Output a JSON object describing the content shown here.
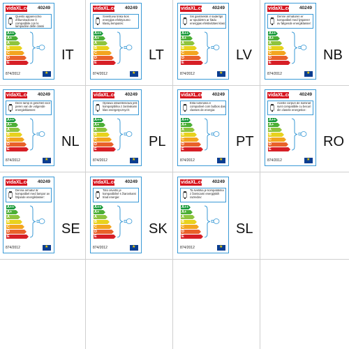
{
  "labels": [
    {
      "lang": "IT",
      "code": "40249",
      "text": "Questo apparecchio d'illuminazione è compatibile con le lampadine delle classi energetiche:",
      "reg": "874/2012"
    },
    {
      "lang": "LT",
      "code": "40249",
      "text": "Šviestuvui tinka šios energijos efektyvumo klasių lemputės:",
      "reg": "874/2012"
    },
    {
      "lang": "LV",
      "code": "40249",
      "text": "Šis gaismeklis ir saderīgs ar spuldzēm ar šādu energijas efektivitātes klasi:",
      "reg": "874/2012"
    },
    {
      "lang": "NB",
      "code": "40249",
      "text": "Denne armaturen er kompatibel med lyspærer av følgende energiklasser:",
      "reg": "874/2012"
    },
    {
      "lang": "NL",
      "code": "40249",
      "text": "Deze lamp is geschikt voor peren van de volgende energieklassen:",
      "reg": "874/2012"
    },
    {
      "lang": "PL",
      "code": "40249",
      "text": "Oprawa oświetleniowa jest kompatybilna z żarówkami klas energetycznych:",
      "reg": "874/2012"
    },
    {
      "lang": "PT",
      "code": "40249",
      "text": "Esta luminária é compatível com bulbos das classes de energia:",
      "reg": "874/2012"
    },
    {
      "lang": "RO",
      "code": "40249",
      "text": "Aceste corpuri de iluminat sunt compatibile cu becuri din clasele energetice:",
      "reg": "874/2012"
    },
    {
      "lang": "SE",
      "code": "40249",
      "text": "Denna armatur är kompatibel med lampor av följande energiklasser:",
      "reg": "874/2012"
    },
    {
      "lang": "SK",
      "code": "40249",
      "text": "Toto osvetlo je kompatibilné s žiarovkami triad energie:",
      "reg": "874/2012"
    },
    {
      "lang": "SL",
      "code": "40249",
      "text": "Ta svetilka je kompatibilna z žarnicami energijskih razredov:",
      "reg": "874/2012"
    }
  ],
  "logo": "vidaXL.com",
  "scale": [
    {
      "grade": "A++",
      "color": "#1a9b3c"
    },
    {
      "grade": "A+",
      "color": "#4caf36"
    },
    {
      "grade": "A",
      "color": "#8fc43e"
    },
    {
      "grade": "B",
      "color": "#e8d21d"
    },
    {
      "grade": "C",
      "color": "#f3a51f"
    },
    {
      "grade": "D",
      "color": "#e9612a"
    },
    {
      "grade": "E",
      "color": "#d71f26"
    }
  ]
}
